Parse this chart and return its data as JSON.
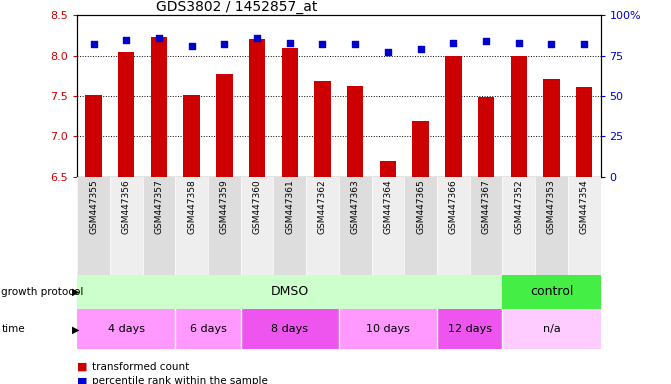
{
  "title": "GDS3802 / 1452857_at",
  "samples": [
    "GSM447355",
    "GSM447356",
    "GSM447357",
    "GSM447358",
    "GSM447359",
    "GSM447360",
    "GSM447361",
    "GSM447362",
    "GSM447363",
    "GSM447364",
    "GSM447365",
    "GSM447366",
    "GSM447367",
    "GSM447352",
    "GSM447353",
    "GSM447354"
  ],
  "bar_values": [
    7.51,
    8.05,
    8.23,
    7.51,
    7.77,
    8.21,
    8.09,
    7.69,
    7.63,
    6.69,
    7.19,
    8.0,
    7.49,
    8.0,
    7.71,
    7.61
  ],
  "percentile_values": [
    82,
    85,
    86,
    81,
    82,
    86,
    83,
    82,
    82,
    77,
    79,
    83,
    84,
    83,
    82,
    82
  ],
  "ylim": [
    6.5,
    8.5
  ],
  "yticks": [
    6.5,
    7.0,
    7.5,
    8.0,
    8.5
  ],
  "right_yticks": [
    0,
    25,
    50,
    75,
    100
  ],
  "right_ytick_labels": [
    "0",
    "25",
    "50",
    "75",
    "100%"
  ],
  "bar_color": "#cc0000",
  "percentile_color": "#0000cc",
  "dmso_color": "#ccffcc",
  "control_color": "#44ee44",
  "time_color_odd": "#ff99ff",
  "time_color_even": "#ee55ee",
  "time_na_color": "#ffccff",
  "sample_bg_even": "#dddddd",
  "sample_bg_odd": "#eeeeee",
  "bar_width": 0.5,
  "n_samples": 16,
  "title_fontsize": 10,
  "time_groups": [
    {
      "label": "4 days",
      "start": 0,
      "end": 2
    },
    {
      "label": "6 days",
      "start": 3,
      "end": 4
    },
    {
      "label": "8 days",
      "start": 5,
      "end": 7
    },
    {
      "label": "10 days",
      "start": 8,
      "end": 10
    },
    {
      "label": "12 days",
      "start": 11,
      "end": 12
    },
    {
      "label": "n/a",
      "start": 13,
      "end": 15
    }
  ]
}
